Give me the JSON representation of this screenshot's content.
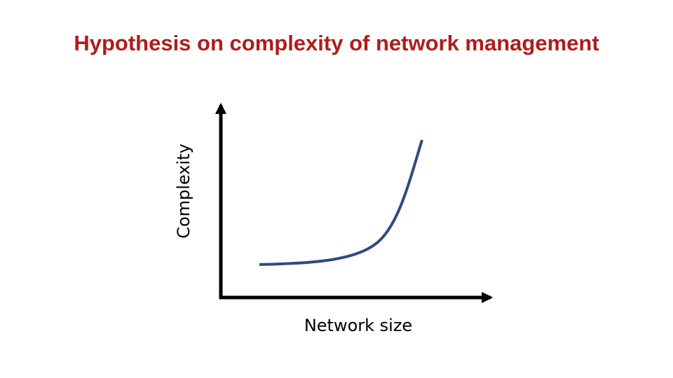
{
  "title": "Hypothesis on complexity of network management",
  "axes": {
    "x_label": "Network size",
    "y_label": "Complexity"
  }
}
